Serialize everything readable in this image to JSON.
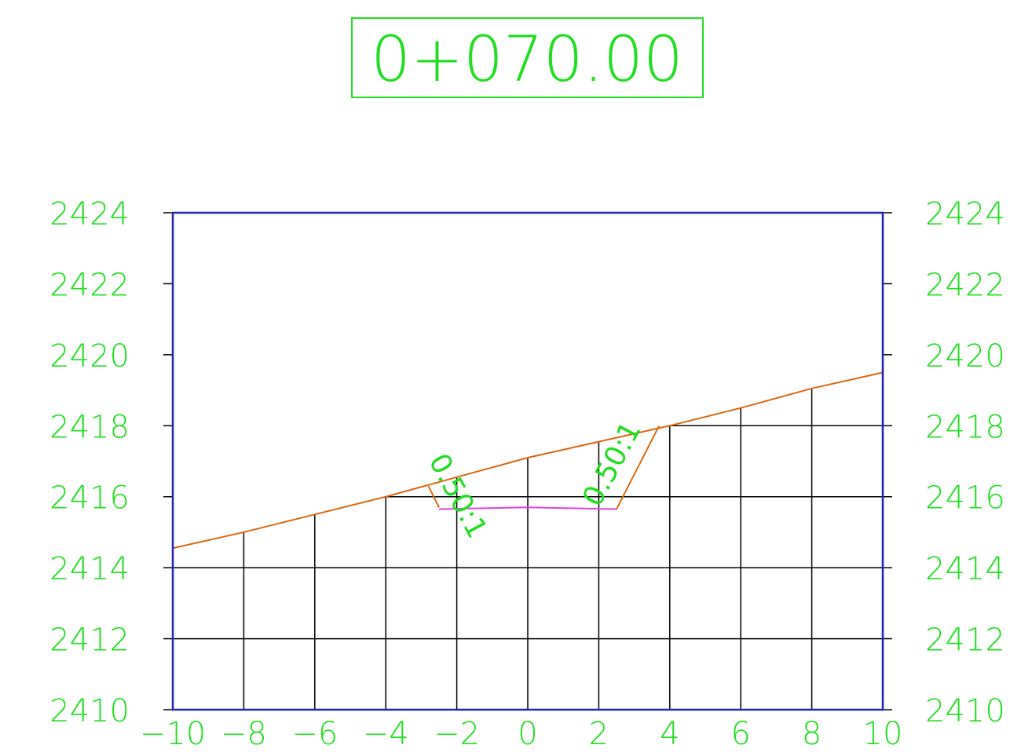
{
  "chart_data": {
    "type": "line",
    "title": "0+070.00",
    "xlabel": "",
    "ylabel": "",
    "xlim": [
      -10,
      10
    ],
    "ylim": [
      2410,
      2424
    ],
    "x_ticks": [
      -10,
      -8,
      -6,
      -4,
      -2,
      0,
      2,
      4,
      6,
      8,
      10
    ],
    "y_ticks": [
      2410,
      2412,
      2414,
      2416,
      2418,
      2420,
      2422,
      2424
    ],
    "x_tick_labels": [
      "−10",
      "−8",
      "−6",
      "−4",
      "−2",
      "0",
      "2",
      "4",
      "6",
      "8",
      "10"
    ],
    "y_tick_labels": [
      "2410",
      "2412",
      "2414",
      "2416",
      "2418",
      "2420",
      "2422",
      "2424"
    ],
    "grid": true,
    "colors": {
      "frame": "#2222bb",
      "grid": "#000000",
      "ground": "#dd6611",
      "section": "#dd6611",
      "subgrade": "#dd44dd",
      "labels": "#22dd22"
    },
    "series": [
      {
        "role": "ground",
        "x": [
          -10,
          -8,
          -6,
          -4,
          -2,
          0,
          2,
          4,
          6,
          8,
          10
        ],
        "y": [
          2414.55,
          2415.0,
          2415.5,
          2416.0,
          2416.55,
          2417.1,
          2417.55,
          2418.0,
          2418.5,
          2419.05,
          2419.5
        ]
      },
      {
        "role": "section",
        "x": [
          -2.8,
          -2.5
        ],
        "y": [
          2416.3,
          2415.7
        ]
      },
      {
        "role": "subgrade",
        "x": [
          -2.5,
          0,
          2.5
        ],
        "y": [
          2415.65,
          2415.7,
          2415.65
        ]
      },
      {
        "role": "section",
        "x": [
          2.5,
          3.7
        ],
        "y": [
          2415.65,
          2418.0
        ]
      }
    ],
    "annotations": [
      {
        "text": "0.50:1",
        "x": -2.2,
        "y": 2415.9,
        "rotate": 62
      },
      {
        "text": "0.50:1",
        "x": 2.6,
        "y": 2416.8,
        "rotate": -62
      }
    ]
  }
}
